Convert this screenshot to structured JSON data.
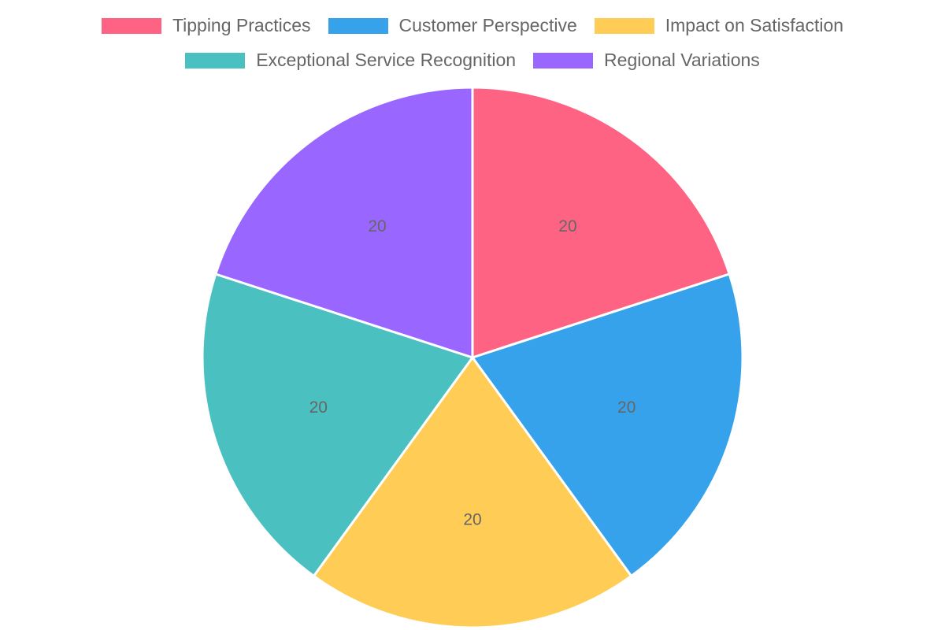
{
  "chart_data": {
    "type": "pie",
    "categories": [
      "Tipping Practices",
      "Customer Perspective",
      "Impact on Satisfaction",
      "Exceptional Service Recognition",
      "Regional Variations"
    ],
    "values": [
      20,
      20,
      20,
      20,
      20
    ],
    "colors": [
      "#ff6384",
      "#36a2eb",
      "#ffcd56",
      "#4bc0c0",
      "#9966ff"
    ],
    "data_labels": [
      "20",
      "20",
      "20",
      "20",
      "20"
    ],
    "legend_position": "top",
    "start_angle_deg": -90,
    "direction": "clockwise"
  }
}
